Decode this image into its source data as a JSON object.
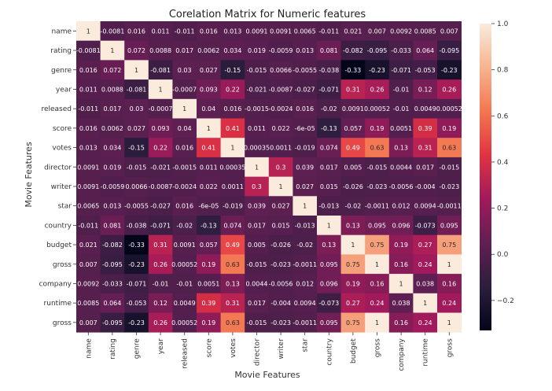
{
  "chart_data": {
    "type": "heatmap",
    "title": "Corelation Matrix for Numeric features",
    "xlabel": "Movie Features",
    "ylabel": "Movie Features",
    "rows": [
      "name",
      "rating",
      "genre",
      "year",
      "released",
      "score",
      "votes",
      "director",
      "writer",
      "star",
      "country",
      "budget",
      "gross",
      "company",
      "runtime",
      "gross"
    ],
    "columns": [
      "name",
      "rating",
      "genre",
      "year",
      "released",
      "score",
      "votes",
      "director",
      "writer",
      "star",
      "country",
      "budget",
      "gross",
      "company",
      "runtime",
      "gross"
    ],
    "values": [
      [
        1,
        -0.0081,
        0.016,
        0.011,
        -0.011,
        0.016,
        0.013,
        0.0091,
        0.0091,
        0.0065,
        -0.011,
        0.021,
        0.007,
        0.0092,
        0.0085,
        0.007
      ],
      [
        -0.0081,
        1,
        0.072,
        0.0088,
        0.017,
        0.0062,
        0.034,
        0.019,
        -0.0059,
        0.013,
        0.081,
        -0.082,
        -0.095,
        -0.033,
        0.064,
        -0.095
      ],
      [
        0.016,
        0.072,
        1,
        -0.081,
        0.03,
        0.027,
        -0.15,
        -0.015,
        0.0066,
        -0.0055,
        -0.038,
        -0.33,
        -0.23,
        -0.071,
        -0.053,
        -0.23
      ],
      [
        0.011,
        0.0088,
        -0.081,
        1,
        -0.0007,
        0.093,
        0.22,
        -0.021,
        -0.0087,
        -0.027,
        -0.071,
        0.31,
        0.26,
        -0.01,
        0.12,
        0.26
      ],
      [
        -0.011,
        0.017,
        0.03,
        -0.0007,
        1,
        0.04,
        0.016,
        -0.0015,
        -0.0024,
        0.016,
        -0.02,
        0.0091,
        0.00052,
        -0.01,
        0.0049,
        0.00052
      ],
      [
        0.016,
        0.0062,
        0.027,
        0.093,
        0.04,
        1,
        0.41,
        0.011,
        0.022,
        -6e-05,
        -0.13,
        0.057,
        0.19,
        0.0051,
        0.39,
        0.19
      ],
      [
        0.013,
        0.034,
        -0.15,
        0.22,
        0.016,
        0.41,
        1,
        0.00035,
        0.0011,
        -0.019,
        0.074,
        0.49,
        0.63,
        0.13,
        0.31,
        0.63
      ],
      [
        0.0091,
        0.019,
        -0.015,
        -0.021,
        -0.0015,
        0.011,
        0.00035,
        1,
        0.3,
        0.039,
        0.017,
        0.005,
        -0.015,
        0.0044,
        0.017,
        -0.015
      ],
      [
        0.0091,
        -0.0059,
        0.0066,
        -0.0087,
        -0.0024,
        0.022,
        0.0011,
        0.3,
        1,
        0.027,
        0.015,
        -0.026,
        -0.023,
        -0.0056,
        -0.004,
        -0.023
      ],
      [
        0.0065,
        0.013,
        -0.0055,
        -0.027,
        0.016,
        -6e-05,
        -0.019,
        0.039,
        0.027,
        1,
        -0.013,
        -0.02,
        -0.0011,
        0.012,
        0.0094,
        -0.0011
      ],
      [
        -0.011,
        0.081,
        -0.038,
        -0.071,
        -0.02,
        -0.13,
        0.074,
        0.017,
        0.015,
        -0.013,
        1,
        0.13,
        0.095,
        0.096,
        -0.073,
        0.095
      ],
      [
        0.021,
        -0.082,
        -0.33,
        0.31,
        0.0091,
        0.057,
        0.49,
        0.005,
        -0.026,
        -0.02,
        0.13,
        1,
        0.75,
        0.19,
        0.27,
        0.75
      ],
      [
        0.007,
        -0.095,
        -0.23,
        0.26,
        0.00052,
        0.19,
        0.63,
        -0.015,
        -0.023,
        -0.0011,
        0.095,
        0.75,
        1,
        0.16,
        0.24,
        1
      ],
      [
        0.0092,
        -0.033,
        -0.071,
        -0.01,
        -0.01,
        0.0051,
        0.13,
        0.0044,
        -0.0056,
        0.012,
        0.096,
        0.19,
        0.16,
        1,
        0.038,
        0.16
      ],
      [
        0.0085,
        0.064,
        -0.053,
        0.12,
        0.0049,
        0.39,
        0.31,
        0.017,
        -0.004,
        0.0094,
        -0.073,
        0.27,
        0.24,
        0.038,
        1,
        0.24
      ],
      [
        0.007,
        -0.095,
        -0.23,
        0.26,
        0.00052,
        0.19,
        0.63,
        -0.015,
        -0.023,
        -0.0011,
        0.095,
        0.75,
        1,
        0.16,
        0.24,
        1
      ]
    ],
    "value_labels": [
      [
        "1",
        "-0.0081",
        "0.016",
        "0.011",
        "-0.011",
        "0.016",
        "0.013",
        "0.0091",
        "0.0091",
        "0.0065",
        "-0.011",
        "0.021",
        "0.007",
        "0.0092",
        "0.0085",
        "0.007"
      ],
      [
        "-0.0081",
        "1",
        "0.072",
        "0.0088",
        "0.017",
        "0.0062",
        "0.034",
        "0.019",
        "-0.0059",
        "0.013",
        "0.081",
        "-0.082",
        "-0.095",
        "-0.033",
        "0.064",
        "-0.095"
      ],
      [
        "0.016",
        "0.072",
        "1",
        "-0.081",
        "0.03",
        "0.027",
        "-0.15",
        "-0.015",
        "0.0066",
        "-0.0055",
        "-0.038",
        "-0.33",
        "-0.23",
        "-0.071",
        "-0.053",
        "-0.23"
      ],
      [
        "0.011",
        "0.0088",
        "-0.081",
        "1",
        "-0.0007",
        "0.093",
        "0.22",
        "-0.021",
        "-0.0087",
        "-0.027",
        "-0.071",
        "0.31",
        "0.26",
        "-0.01",
        "0.12",
        "0.26"
      ],
      [
        "-0.011",
        "0.017",
        "0.03",
        "-0.0007",
        "1",
        "0.04",
        "0.016",
        "-0.0015",
        "-0.0024",
        "0.016",
        "-0.02",
        "0.0091",
        "0.00052",
        "-0.01",
        "0.0049",
        "0.00052"
      ],
      [
        "0.016",
        "0.0062",
        "0.027",
        "0.093",
        "0.04",
        "1",
        "0.41",
        "0.011",
        "0.022",
        "-6e-05",
        "-0.13",
        "0.057",
        "0.19",
        "0.0051",
        "0.39",
        "0.19"
      ],
      [
        "0.013",
        "0.034",
        "-0.15",
        "0.22",
        "0.016",
        "0.41",
        "1",
        "0.00035",
        "0.0011",
        "-0.019",
        "0.074",
        "0.49",
        "0.63",
        "0.13",
        "0.31",
        "0.63"
      ],
      [
        "0.0091",
        "0.019",
        "-0.015",
        "-0.021",
        "-0.0015",
        "0.011",
        "0.00035",
        "1",
        "0.3",
        "0.039",
        "0.017",
        "0.005",
        "-0.015",
        "0.0044",
        "0.017",
        "-0.015"
      ],
      [
        "0.0091",
        "-0.0059",
        "0.0066",
        "-0.0087",
        "-0.0024",
        "0.022",
        "0.0011",
        "0.3",
        "1",
        "0.027",
        "0.015",
        "-0.026",
        "-0.023",
        "-0.0056",
        "-0.004",
        "-0.023"
      ],
      [
        "0.0065",
        "0.013",
        "-0.0055",
        "-0.027",
        "0.016",
        "-6e-05",
        "-0.019",
        "0.039",
        "0.027",
        "1",
        "-0.013",
        "-0.02",
        "-0.0011",
        "0.012",
        "0.0094",
        "-0.0011"
      ],
      [
        "-0.011",
        "0.081",
        "-0.038",
        "-0.071",
        "-0.02",
        "-0.13",
        "0.074",
        "0.017",
        "0.015",
        "-0.013",
        "1",
        "0.13",
        "0.095",
        "0.096",
        "-0.073",
        "0.095"
      ],
      [
        "0.021",
        "-0.082",
        "-0.33",
        "0.31",
        "0.0091",
        "0.057",
        "0.49",
        "0.005",
        "-0.026",
        "-0.02",
        "0.13",
        "1",
        "0.75",
        "0.19",
        "0.27",
        "0.75"
      ],
      [
        "0.007",
        "-0.095",
        "-0.23",
        "0.26",
        "0.00052",
        "0.19",
        "0.63",
        "-0.015",
        "-0.023",
        "-0.0011",
        "0.095",
        "0.75",
        "1",
        "0.16",
        "0.24",
        "1"
      ],
      [
        "0.0092",
        "-0.033",
        "-0.071",
        "-0.01",
        "-0.01",
        "0.0051",
        "0.13",
        "0.0044",
        "-0.0056",
        "0.012",
        "0.096",
        "0.19",
        "0.16",
        "1",
        "0.038",
        "0.16"
      ],
      [
        "0.0085",
        "0.064",
        "-0.053",
        "0.12",
        "0.0049",
        "0.39",
        "0.31",
        "0.017",
        "-0.004",
        "0.0094",
        "-0.073",
        "0.27",
        "0.24",
        "0.038",
        "1",
        "0.24"
      ],
      [
        "0.007",
        "-0.095",
        "-0.23",
        "0.26",
        "0.00052",
        "0.19",
        "0.63",
        "-0.015",
        "-0.023",
        "-0.0011",
        "0.095",
        "0.75",
        "1",
        "0.16",
        "0.24",
        "1"
      ]
    ],
    "colorbar": {
      "range": [
        -0.33,
        1.0
      ],
      "ticks": [
        -0.2,
        0.0,
        0.2,
        0.4,
        0.6,
        0.8,
        1.0
      ],
      "tick_labels": [
        "−0.2",
        "0.0",
        "0.2",
        "0.4",
        "0.6",
        "0.8",
        "1.0"
      ]
    },
    "colormap": "rocket",
    "colormap_stops": [
      "#03051a",
      "#2c1e3e",
      "#611f53",
      "#a11a5b",
      "#e13342",
      "#f37651",
      "#f6b48f",
      "#faebdd"
    ],
    "grid": false,
    "legend": "colorbar-right"
  }
}
